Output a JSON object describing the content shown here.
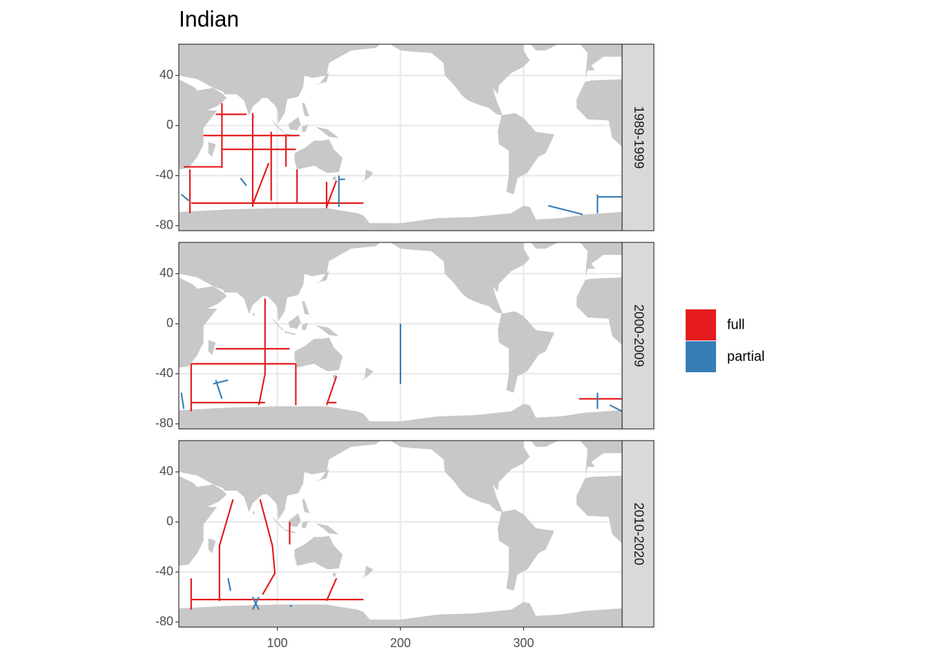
{
  "chart_data": [
    {
      "type": "map",
      "title": "Indian",
      "facet": "1989-1999",
      "xlim": [
        20,
        380
      ],
      "ylim": [
        -84,
        65
      ],
      "xticks": [
        100,
        200,
        300
      ],
      "yticks": [
        40,
        0,
        -40,
        -80
      ],
      "grid": true,
      "series": [
        {
          "name": "full",
          "color": "#E41A1C",
          "x": [
            55,
            55,
            null,
            40,
            118,
            null,
            55,
            115,
            null,
            50,
            75,
            null,
            80,
            80,
            null,
            95,
            95,
            null,
            107,
            107,
            null,
            29,
            29,
            null,
            30,
            170,
            null,
            93,
            80,
            null,
            116,
            116,
            null,
            140,
            140,
            null,
            148,
            140,
            null,
            24,
            55
          ],
          "values": [
            18,
            -34,
            null,
            -8,
            -8,
            null,
            -19,
            -19,
            null,
            9,
            9,
            null,
            10,
            -65,
            null,
            -5,
            -60,
            null,
            -8,
            -33,
            null,
            -35,
            -70,
            null,
            -62,
            -62,
            null,
            -30,
            -63,
            null,
            -35,
            -62,
            null,
            -45,
            -66,
            null,
            -44,
            -65,
            null,
            -33,
            -33
          ]
        },
        {
          "name": "partial",
          "color": "#377EB8",
          "x": [
            22,
            28,
            null,
            150,
            150,
            null,
            150,
            155,
            null,
            320,
            348,
            null,
            360,
            360,
            null,
            360,
            380,
            null,
            70,
            75
          ],
          "values": [
            -55,
            -60,
            null,
            -40,
            -65,
            null,
            -43,
            -43,
            null,
            -64,
            -71,
            null,
            -55,
            -70,
            null,
            -57,
            -57,
            null,
            -42,
            -48
          ]
        }
      ]
    },
    {
      "type": "map",
      "facet": "2000-2009",
      "xlim": [
        20,
        380
      ],
      "ylim": [
        -84,
        65
      ],
      "xticks": [
        100,
        200,
        300
      ],
      "yticks": [
        40,
        0,
        -40,
        -80
      ],
      "grid": true,
      "series": [
        {
          "name": "full",
          "color": "#E41A1C",
          "x": [
            90,
            90,
            85,
            null,
            50,
            110,
            null,
            30,
            115,
            null,
            30,
            30,
            null,
            115,
            115,
            null,
            30,
            90,
            null,
            148,
            140,
            null,
            140,
            148,
            null,
            345,
            380
          ],
          "values": [
            20,
            -40,
            -65,
            null,
            -20,
            -20,
            null,
            -32,
            -32,
            null,
            -32,
            -70,
            null,
            -32,
            -65,
            null,
            -63,
            -63,
            null,
            -42,
            -65,
            null,
            -63,
            -63,
            null,
            -60,
            -60
          ]
        },
        {
          "name": "partial",
          "color": "#377EB8",
          "x": [
            200,
            200,
            null,
            50,
            55,
            null,
            48,
            60,
            null,
            360,
            360,
            null,
            370,
            380,
            null,
            22,
            24
          ],
          "values": [
            0,
            -48,
            null,
            -45,
            -60,
            null,
            -48,
            -45,
            null,
            -55,
            -68,
            null,
            -65,
            -70,
            null,
            -55,
            -68
          ]
        }
      ]
    },
    {
      "type": "map",
      "facet": "2010-2020",
      "xlim": [
        20,
        380
      ],
      "ylim": [
        -84,
        65
      ],
      "xticks": [
        100,
        200,
        300
      ],
      "yticks": [
        40,
        0,
        -40,
        -80
      ],
      "grid": true,
      "series": [
        {
          "name": "full",
          "color": "#E41A1C",
          "x": [
            64,
            53,
            53,
            null,
            86,
            96,
            98,
            88,
            null,
            110,
            110,
            null,
            30,
            170,
            null,
            30,
            30,
            null,
            148,
            140
          ],
          "values": [
            18,
            -19,
            -63,
            null,
            18,
            -19,
            -41,
            -58,
            null,
            0,
            -18,
            null,
            -62,
            -62,
            null,
            -45,
            -70,
            null,
            -45,
            -63
          ]
        },
        {
          "name": "partial",
          "color": "#377EB8",
          "x": [
            80,
            85,
            null,
            85,
            80,
            null,
            110,
            112,
            null,
            60,
            62
          ],
          "values": [
            -60,
            -70,
            null,
            -60,
            -70,
            null,
            -67,
            -67,
            null,
            -45,
            -55
          ]
        }
      ]
    }
  ]
}
